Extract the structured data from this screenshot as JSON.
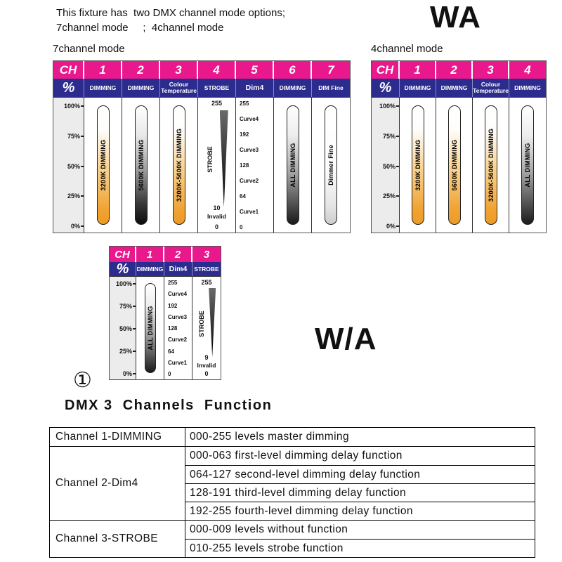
{
  "colors": {
    "header_pink": "#e9188c",
    "header_blue": "#2c2c8e",
    "bar_orange": "#f0a232"
  },
  "intro": {
    "line1": "This fixture has  two DMX channel mode options;",
    "line2": "7channel mode     ;  4channel mode"
  },
  "labels": {
    "wa": "WA",
    "wa_slash": "W/A",
    "circled_one": "①"
  },
  "percent_ticks": [
    "100%",
    "75%",
    "50%",
    "25%",
    "0%"
  ],
  "mode7": {
    "title": "7channel mode",
    "ch": "CH",
    "percent": "%",
    "channels": [
      "1",
      "2",
      "3",
      "4",
      "5",
      "6",
      "7"
    ],
    "functions": [
      "DIMMING",
      "DIMMING",
      "Colour Temperature",
      "STROBE",
      "Dim4",
      "DIMMING",
      "DIM Fine"
    ],
    "bars": [
      {
        "label": "3200K DIMMING"
      },
      {
        "label": "5600K DIMMING"
      },
      {
        "label": "3200K-5600K DIMMING"
      },
      {
        "label": "STROBE",
        "top": "255",
        "low": "10",
        "invalid": "Invalid",
        "zero": "0"
      },
      {
        "scale": [
          "255",
          "Curve4",
          "192",
          "Curve3",
          "128",
          "Curve2",
          "64",
          "Curve1",
          "0"
        ]
      },
      {
        "label": "ALL DIMMING"
      },
      {
        "label": "Dimmer Fine"
      }
    ]
  },
  "mode4": {
    "title": "4channel mode",
    "ch": "CH",
    "percent": "%",
    "channels": [
      "1",
      "2",
      "3",
      "4"
    ],
    "functions": [
      "DIMMING",
      "DIMMING",
      "Colour Temperature",
      "DIMMING"
    ],
    "bars": [
      {
        "label": "3200K DIMMING"
      },
      {
        "label": "5600K DIMMING"
      },
      {
        "label": "3200K-5600K DIMMING"
      },
      {
        "label": "ALL DIMMING"
      }
    ]
  },
  "mode3": {
    "ch": "CH",
    "percent": "%",
    "channels": [
      "1",
      "2",
      "3"
    ],
    "functions": [
      "DIMMING",
      "Dim4",
      "STROBE"
    ],
    "bars": [
      {
        "label": "ALL DIMMING"
      },
      {
        "scale": [
          "255",
          "Curve4",
          "192",
          "Curve3",
          "128",
          "Curve2",
          "64",
          "Curve1",
          "0"
        ]
      },
      {
        "label": "STROBE",
        "top": "255",
        "low": "9",
        "invalid": "Invalid",
        "zero": "0"
      }
    ]
  },
  "function_table": {
    "heading": "DMX 3  Channels  Function",
    "rows": [
      {
        "channel": "Channel 1-DIMMING",
        "entries": [
          "000-255 levels master dimming"
        ]
      },
      {
        "channel": "Channel 2-Dim4",
        "entries": [
          "000-063 first-level dimming delay function",
          "064-127 second-level dimming delay function",
          "128-191 third-level dimming delay function",
          "192-255 fourth-level dimming delay function"
        ]
      },
      {
        "channel": "Channel 3-STROBE",
        "entries": [
          "000-009 levels without function",
          "010-255 levels strobe function"
        ]
      }
    ]
  }
}
